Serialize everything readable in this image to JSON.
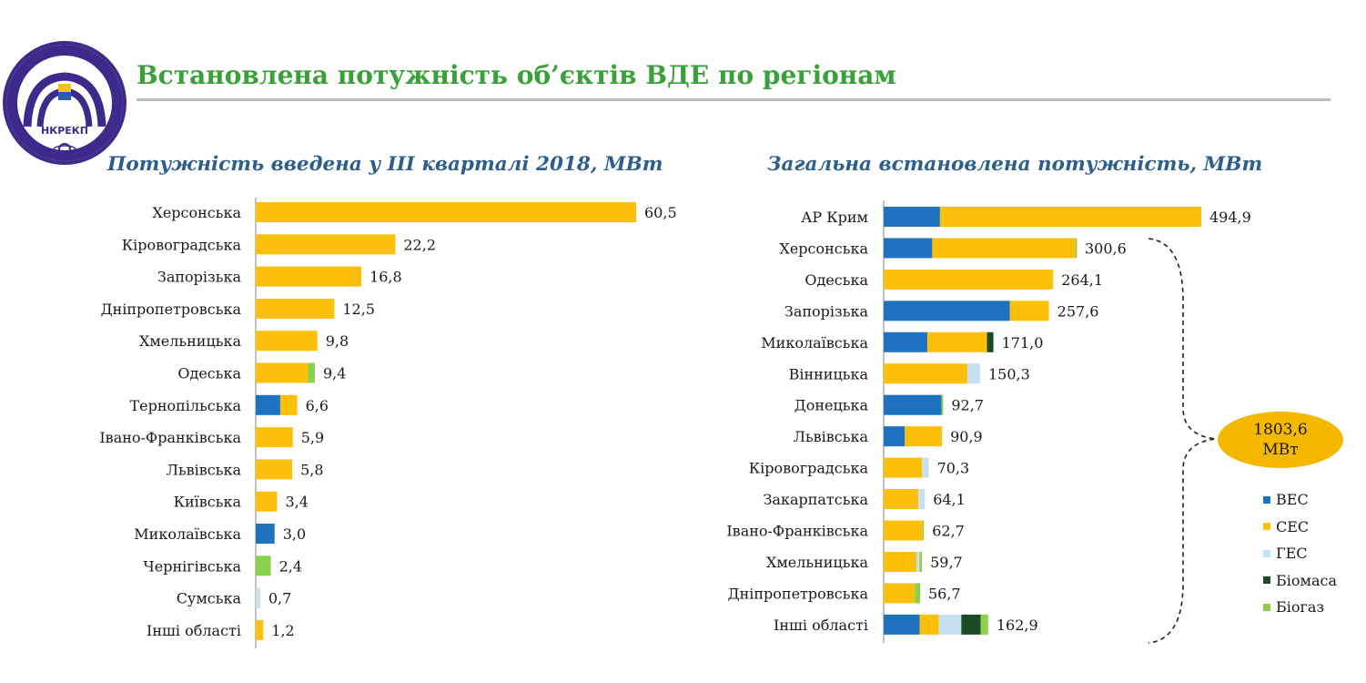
{
  "page": {
    "title": "Встановлена потужність об’єктів ВДЕ по регіонам"
  },
  "logo": {
    "text": "НКРЕКП"
  },
  "colors": {
    "title": "#3aa13a",
    "subtitle": "#2e5f8c",
    "ВЕС": "#1e72c0",
    "СЕС": "#fcc00a",
    "ГЕС": "#c7e0f2",
    "Біомаса": "#1b4a26",
    "Біогаз": "#8cd14e",
    "callout": "#f4b800"
  },
  "callout": {
    "value": "1803,6",
    "unit": "МВт"
  },
  "chart_data": [
    {
      "type": "bar",
      "orientation": "horizontal",
      "stacked": true,
      "title": "Потужність введена у III кварталі 2018, МВт",
      "categories": [
        "Херсонська",
        "Кіровоградська",
        "Запорізька",
        "Дніпропетровська",
        "Хмельницька",
        "Одеська",
        "Тернопільська",
        "Івано-Франківська",
        "Львівська",
        "Київська",
        "Миколаївська",
        "Чернігівська",
        "Сумська",
        "Інші області"
      ],
      "totals": [
        "60,5",
        "22,2",
        "16,8",
        "12,5",
        "9,8",
        "9,4",
        "6,6",
        "5,9",
        "5,8",
        "3,4",
        "3,0",
        "2,4",
        "0,7",
        "1,2"
      ],
      "series": [
        {
          "name": "ВЕС",
          "values": [
            0,
            0,
            0,
            0,
            0,
            0,
            3.9,
            0,
            0,
            0,
            3.0,
            0,
            0,
            0
          ]
        },
        {
          "name": "СЕС",
          "values": [
            60.5,
            22.2,
            16.8,
            12.5,
            9.8,
            8.3,
            2.7,
            5.9,
            5.8,
            3.4,
            0,
            0,
            0,
            1.2
          ]
        },
        {
          "name": "ГЕС",
          "values": [
            0,
            0,
            0,
            0,
            0,
            0,
            0,
            0,
            0,
            0,
            0,
            0,
            0.7,
            0
          ]
        },
        {
          "name": "Біомаса",
          "values": [
            0,
            0,
            0,
            0,
            0,
            0,
            0,
            0,
            0,
            0,
            0,
            0,
            0,
            0
          ]
        },
        {
          "name": "Біогаз",
          "values": [
            0,
            0,
            0,
            0,
            0,
            1.1,
            0,
            0,
            0,
            0,
            0,
            2.4,
            0,
            0
          ]
        }
      ],
      "xlim": [
        0,
        65
      ],
      "grid": false
    },
    {
      "type": "bar",
      "orientation": "horizontal",
      "stacked": true,
      "title": "Загальна встановлена потужність, МВт",
      "categories": [
        "АР Крим",
        "Херсонська",
        "Одеська",
        "Запорізька",
        "Миколаївська",
        "Вінницька",
        "Донецька",
        "Львівська",
        "Кіровоградська",
        "Закарпатська",
        "Івано-Франківська",
        "Хмельницька",
        "Дніпропетровська",
        "Інші області"
      ],
      "totals": [
        "494,9",
        "300,6",
        "264,1",
        "257,6",
        "171,0",
        "150,3",
        "92,7",
        "90,9",
        "70,3",
        "64,1",
        "62,7",
        "59,7",
        "56,7",
        "162,9"
      ],
      "series": [
        {
          "name": "ВЕС",
          "values": [
            87.8,
            75.7,
            0,
            196.7,
            68.0,
            0,
            90.0,
            33.0,
            0,
            0,
            0,
            0,
            0,
            56.0
          ]
        },
        {
          "name": "СЕС",
          "values": [
            407.1,
            223.4,
            264.1,
            60.9,
            93.0,
            130.3,
            0,
            57.9,
            60.0,
            54.0,
            60.5,
            51.0,
            48.5,
            30.0
          ]
        },
        {
          "name": "ГЕС",
          "values": [
            0,
            0,
            0,
            0,
            0,
            20.0,
            0,
            0,
            10.3,
            10.1,
            0,
            5.0,
            0,
            35.0
          ]
        },
        {
          "name": "Біомаса",
          "values": [
            0,
            0,
            0,
            0,
            10.0,
            0,
            0,
            0,
            0,
            0,
            0,
            0,
            0,
            30.0
          ]
        },
        {
          "name": "Біогаз",
          "values": [
            0,
            1.5,
            0,
            0,
            0,
            0,
            2.7,
            0,
            0,
            0,
            2.2,
            3.7,
            8.2,
            11.9
          ]
        }
      ],
      "xlim": [
        0,
        520
      ],
      "grid": false
    }
  ],
  "legend": {
    "position": "right",
    "items": [
      "ВЕС",
      "СЕС",
      "ГЕС",
      "Біомаса",
      "Біогаз"
    ]
  }
}
